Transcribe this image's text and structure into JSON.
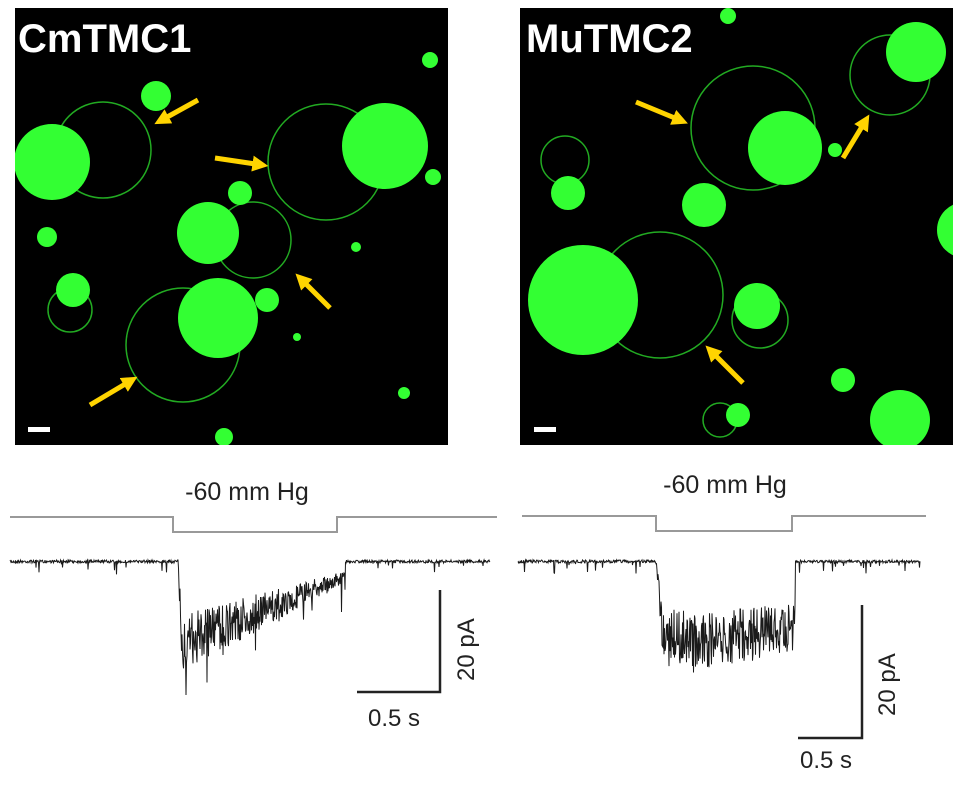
{
  "panels": [
    {
      "title": "CmTMC1",
      "pressure_label": "-60 mm Hg",
      "current_scale": "20 pA",
      "time_scale": "0.5 s"
    },
    {
      "title": "MuTMC2",
      "pressure_label": "-60 mm Hg",
      "current_scale": "20 pA",
      "time_scale": "0.5 s"
    }
  ],
  "colors": {
    "fluorescence": "#33ff33",
    "arrow": "#ffd400",
    "background": "#000000",
    "trace": "#1a1a1a",
    "pressure_line": "#999999"
  },
  "chart_data": [
    {
      "type": "line",
      "title": "CmTMC1",
      "annotation": "-60 mm Hg",
      "scale_bars": {
        "y": "20 pA",
        "x": "0.5 s"
      }
    },
    {
      "type": "line",
      "title": "MuTMC2",
      "annotation": "-60 mm Hg",
      "scale_bars": {
        "y": "20 pA",
        "x": "0.5 s"
      }
    }
  ]
}
